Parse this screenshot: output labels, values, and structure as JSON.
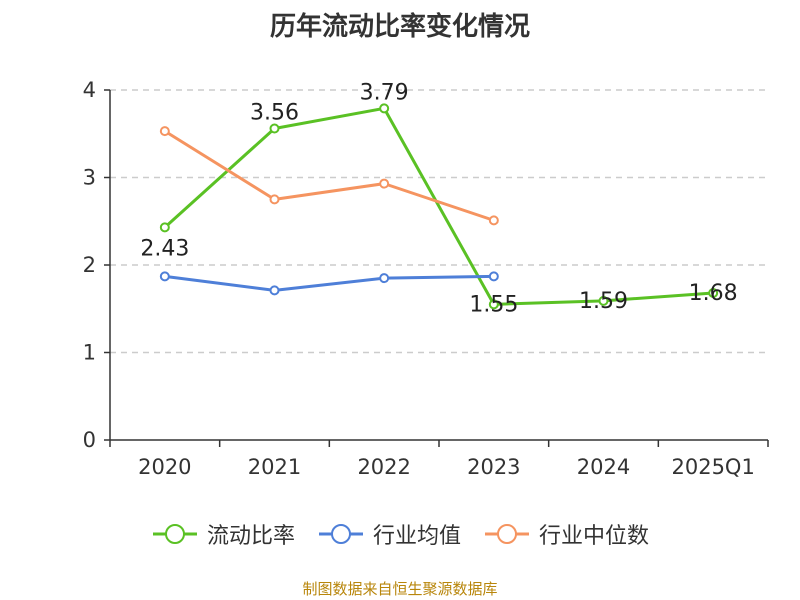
{
  "title": "历年流动比率变化情况",
  "source": "制图数据来自恒生聚源数据库",
  "chart_data": {
    "type": "line",
    "title": "历年流动比率变化情况",
    "categories": [
      "2020",
      "2021",
      "2022",
      "2023",
      "2024",
      "2025Q1"
    ],
    "y_ticks": [
      "0",
      "1",
      "2",
      "3",
      "4"
    ],
    "ylim": [
      0,
      4
    ],
    "grid": "horizontal dashed",
    "legend_position": "bottom",
    "series": [
      {
        "name": "流动比率",
        "color": "#5ac124",
        "values": [
          2.43,
          3.56,
          3.79,
          1.55,
          1.59,
          1.68
        ],
        "labels": [
          "2.43",
          "3.56",
          "3.79",
          "1.55",
          "1.59",
          "1.68"
        ]
      },
      {
        "name": "行业均值",
        "color": "#4e7fd8",
        "values": [
          1.87,
          1.71,
          1.85,
          1.87,
          null,
          null
        ]
      },
      {
        "name": "行业中位数",
        "color": "#f59460",
        "values": [
          3.53,
          2.75,
          2.93,
          2.51,
          null,
          null
        ]
      }
    ]
  }
}
